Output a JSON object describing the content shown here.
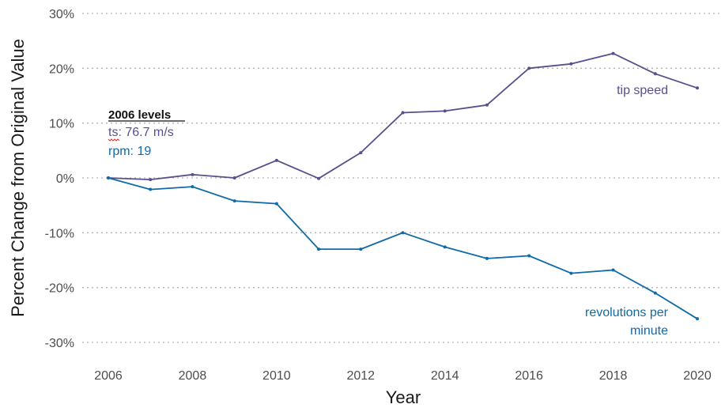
{
  "chart_data": {
    "type": "line",
    "xlabel": "Year",
    "ylabel": "Percent Change from Original Value",
    "xlim": [
      2006,
      2020
    ],
    "ylim": [
      -30,
      30
    ],
    "x_ticks": [
      2006,
      2008,
      2010,
      2012,
      2014,
      2016,
      2018,
      2020
    ],
    "y_ticks": [
      30,
      20,
      10,
      0,
      -10,
      -20,
      -30
    ],
    "y_tick_labels": [
      "30%",
      "20%",
      "10%",
      "0%",
      "-10%",
      "-20%",
      "-30%"
    ],
    "grid": "horizontal dotted",
    "x": [
      2006,
      2007,
      2008,
      2009,
      2010,
      2011,
      2012,
      2013,
      2014,
      2015,
      2016,
      2017,
      2018,
      2019,
      2020
    ],
    "series": [
      {
        "name": "tip speed",
        "color": "#5a4e8c",
        "values": [
          0,
          -0.3,
          0.6,
          0,
          3.2,
          -0.1,
          4.6,
          11.9,
          12.2,
          13.3,
          20.0,
          20.8,
          22.7,
          19.0,
          16.4
        ]
      },
      {
        "name": "revolutions per minute",
        "color": "#0f6aa8",
        "values": [
          0,
          -2.1,
          -1.6,
          -4.2,
          -4.7,
          -13.0,
          -13.0,
          -10.0,
          -12.6,
          -14.7,
          -14.2,
          -17.4,
          -16.8,
          -21.0,
          -25.7
        ]
      }
    ],
    "series_labels": [
      {
        "lines": [
          "tip speed"
        ]
      },
      {
        "lines": [
          "revolutions per",
          "minute"
        ]
      }
    ],
    "annotation": {
      "title": "2006 levels",
      "lines": [
        {
          "prefix": "ts",
          "text": ": 76.7 m/s"
        },
        {
          "prefix": "",
          "text": "rpm: 19"
        }
      ]
    }
  }
}
